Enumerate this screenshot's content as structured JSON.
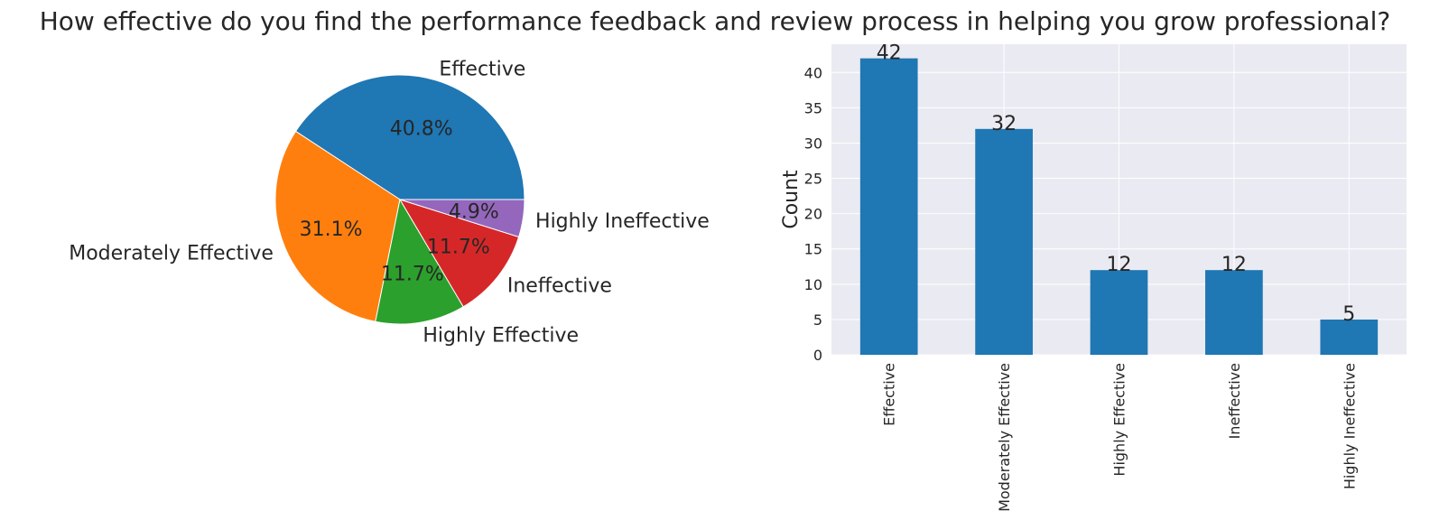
{
  "title": "How effective do you find the performance feedback and review process in helping you grow professional?",
  "chart_data": [
    {
      "type": "pie",
      "categories": [
        "Effective",
        "Moderately Effective",
        "Highly Effective",
        "Ineffective",
        "Highly Ineffective"
      ],
      "values": [
        42,
        32,
        12,
        12,
        5
      ],
      "percent_labels": [
        "40.8%",
        "31.1%",
        "11.7%",
        "11.7%",
        "4.9%"
      ],
      "colors": [
        "#1f77b4",
        "#ff7f0e",
        "#2ca02c",
        "#d62728",
        "#9467bd"
      ],
      "start_angle_deg": 0,
      "direction": "counterclockwise"
    },
    {
      "type": "bar",
      "categories": [
        "Effective",
        "Moderately Effective",
        "Highly Effective",
        "Ineffective",
        "Highly Ineffective"
      ],
      "values": [
        42,
        32,
        12,
        12,
        5
      ],
      "value_labels": [
        "42",
        "32",
        "12",
        "12",
        "5"
      ],
      "ylabel": "Count",
      "xlabel": "",
      "ylim": [
        0,
        44
      ],
      "yticks": [
        0,
        5,
        10,
        15,
        20,
        25,
        30,
        35,
        40
      ],
      "bar_color": "#1f77b4",
      "grid": true,
      "background": "#eaeaf2"
    }
  ]
}
